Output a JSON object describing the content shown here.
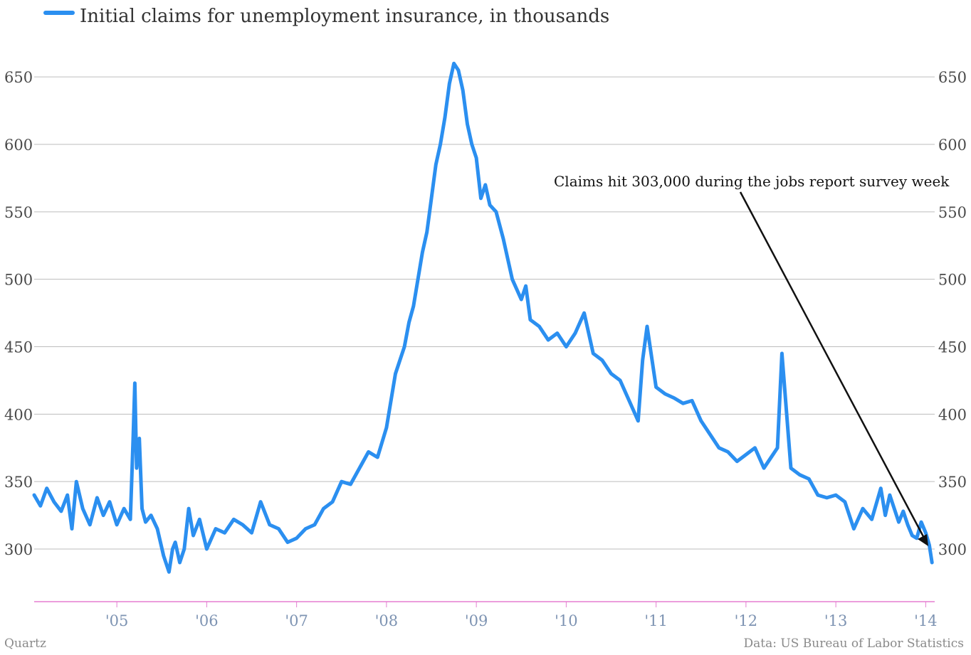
{
  "colors": {
    "series": "#2b8ff0",
    "grid": "#bdbdbd",
    "axis": "#e57fd1",
    "ytick": "#4a4a4a",
    "xtick": "#7d93b2"
  },
  "legend": {
    "label": "Initial claims for unemployment insurance, in thousands"
  },
  "annotation": {
    "text": "Claims hit 303,000 during the jobs report survey week"
  },
  "footer": {
    "source_left": "Quartz",
    "source_right": "Data: US Bureau of Labor Statistics"
  },
  "chart_data": {
    "type": "line",
    "title": "",
    "xlabel": "",
    "ylabel": "",
    "ylim": [
      260,
      670
    ],
    "xlim": [
      2004.08,
      2014.1
    ],
    "grid": true,
    "y_ticks": [
      300,
      350,
      400,
      450,
      500,
      550,
      600,
      650
    ],
    "y_tick_labels": [
      "300",
      "350",
      "400",
      "450",
      "500",
      "550",
      "600",
      "650"
    ],
    "x_ticks": [
      2005,
      2006,
      2007,
      2008,
      2009,
      2010,
      2011,
      2012,
      2013,
      2014
    ],
    "x_tick_labels": [
      "'05",
      "'06",
      "'07",
      "'08",
      "'09",
      "'10",
      "'11",
      "'12",
      "'13",
      "'14"
    ],
    "legend_position": "top-left",
    "series": [
      {
        "name": "Initial claims for unemployment insurance, in thousands",
        "x": [
          2004.08,
          2004.15,
          2004.22,
          2004.3,
          2004.38,
          2004.45,
          2004.5,
          2004.55,
          2004.62,
          2004.7,
          2004.78,
          2004.85,
          2004.92,
          2005.0,
          2005.08,
          2005.15,
          2005.18,
          2005.2,
          2005.22,
          2005.25,
          2005.28,
          2005.32,
          2005.38,
          2005.45,
          2005.52,
          2005.58,
          2005.62,
          2005.65,
          2005.7,
          2005.75,
          2005.8,
          2005.85,
          2005.92,
          2006.0,
          2006.1,
          2006.2,
          2006.3,
          2006.4,
          2006.5,
          2006.6,
          2006.7,
          2006.8,
          2006.9,
          2007.0,
          2007.1,
          2007.2,
          2007.3,
          2007.4,
          2007.5,
          2007.6,
          2007.7,
          2007.8,
          2007.9,
          2008.0,
          2008.1,
          2008.2,
          2008.25,
          2008.3,
          2008.4,
          2008.45,
          2008.5,
          2008.55,
          2008.6,
          2008.65,
          2008.7,
          2008.75,
          2008.8,
          2008.85,
          2008.9,
          2008.95,
          2009.0,
          2009.05,
          2009.1,
          2009.15,
          2009.22,
          2009.3,
          2009.4,
          2009.5,
          2009.55,
          2009.6,
          2009.7,
          2009.8,
          2009.9,
          2010.0,
          2010.1,
          2010.2,
          2010.3,
          2010.4,
          2010.5,
          2010.6,
          2010.7,
          2010.8,
          2010.85,
          2010.9,
          2011.0,
          2011.1,
          2011.2,
          2011.3,
          2011.4,
          2011.5,
          2011.6,
          2011.7,
          2011.8,
          2011.9,
          2012.0,
          2012.1,
          2012.2,
          2012.3,
          2012.35,
          2012.4,
          2012.5,
          2012.6,
          2012.7,
          2012.8,
          2012.9,
          2013.0,
          2013.1,
          2013.2,
          2013.3,
          2013.4,
          2013.5,
          2013.55,
          2013.6,
          2013.7,
          2013.75,
          2013.8,
          2013.85,
          2013.9,
          2013.95,
          2014.0,
          2014.04,
          2014.07
        ],
        "y": [
          340,
          332,
          345,
          335,
          328,
          340,
          315,
          350,
          330,
          318,
          338,
          325,
          335,
          318,
          330,
          322,
          380,
          423,
          360,
          382,
          330,
          320,
          325,
          315,
          295,
          283,
          300,
          305,
          290,
          300,
          330,
          310,
          322,
          300,
          315,
          312,
          322,
          318,
          312,
          335,
          318,
          315,
          305,
          308,
          315,
          318,
          330,
          335,
          350,
          348,
          360,
          372,
          368,
          390,
          430,
          450,
          468,
          480,
          520,
          535,
          560,
          585,
          600,
          620,
          645,
          660,
          655,
          640,
          615,
          600,
          590,
          560,
          570,
          555,
          550,
          530,
          500,
          485,
          495,
          470,
          465,
          455,
          460,
          450,
          460,
          475,
          445,
          440,
          430,
          425,
          410,
          395,
          440,
          465,
          420,
          415,
          412,
          408,
          410,
          395,
          385,
          375,
          372,
          365,
          370,
          375,
          360,
          370,
          375,
          445,
          360,
          355,
          352,
          340,
          338,
          340,
          335,
          315,
          330,
          322,
          345,
          325,
          340,
          320,
          328,
          318,
          310,
          308,
          320,
          312,
          303,
          290
        ]
      }
    ]
  }
}
